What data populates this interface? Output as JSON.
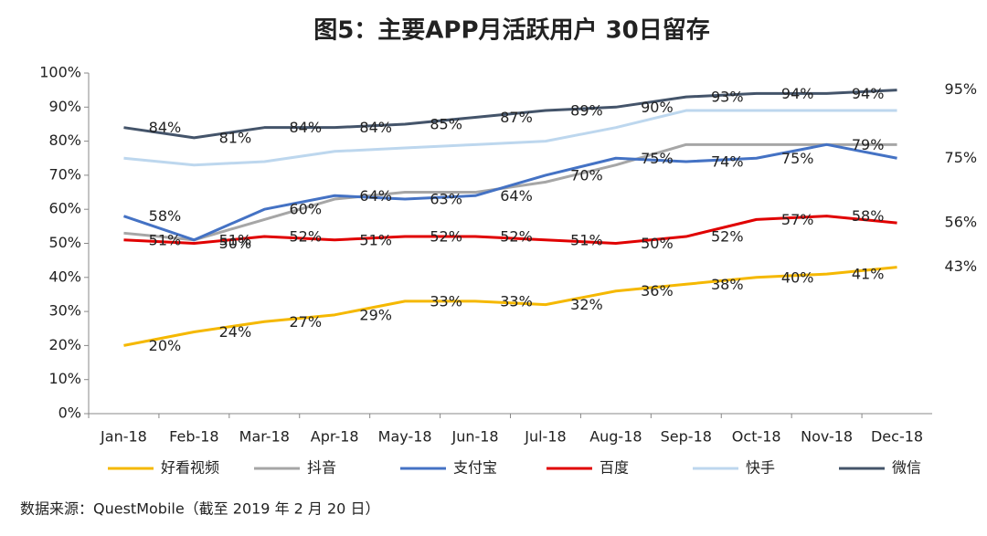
{
  "chart_data": {
    "type": "line",
    "title": "图5：主要APP月活跃用户 30日留存",
    "source": "数据来源：QuestMobile（截至 2019 年 2 月 20 日）",
    "categories": [
      "Jan-18",
      "Feb-18",
      "Mar-18",
      "Apr-18",
      "May-18",
      "Jun-18",
      "Jul-18",
      "Aug-18",
      "Sep-18",
      "Oct-18",
      "Nov-18",
      "Dec-18"
    ],
    "ylim": [
      0,
      100
    ],
    "yticks": [
      {
        "value": 0,
        "label": "0%"
      },
      {
        "value": 10,
        "label": "10%"
      },
      {
        "value": 20,
        "label": "20%"
      },
      {
        "value": 30,
        "label": "30%"
      },
      {
        "value": 40,
        "label": "40%"
      },
      {
        "value": 50,
        "label": "50%"
      },
      {
        "value": 60,
        "label": "60%"
      },
      {
        "value": 70,
        "label": "70%"
      },
      {
        "value": 80,
        "label": "80%"
      },
      {
        "value": 90,
        "label": "90%"
      },
      {
        "value": 100,
        "label": "100%"
      }
    ],
    "grid": false,
    "legend": "bottom",
    "series": [
      {
        "name": "好看视频",
        "color": "#f5b800",
        "values": [
          20,
          24,
          27,
          29,
          33,
          33,
          32,
          36,
          38,
          40,
          41,
          43
        ],
        "value_labels": [
          "20%",
          "24%",
          "27%",
          "29%",
          "33%",
          "33%",
          "32%",
          "36%",
          "38%",
          "40%",
          "41%",
          "43%"
        ]
      },
      {
        "name": "抖音",
        "color": "#a6a6a6",
        "values": [
          53,
          51,
          57,
          63,
          65,
          65,
          68,
          73,
          79,
          79,
          79,
          79
        ]
      },
      {
        "name": "支付宝",
        "color": "#4472c4",
        "values": [
          58,
          51,
          60,
          64,
          63,
          64,
          70,
          75,
          74,
          75,
          79,
          75
        ],
        "value_labels": [
          "58%",
          "51%",
          "60%",
          "64%",
          "63%",
          "64%",
          "70%",
          "75%",
          "74%",
          "75%",
          "79%",
          "75%"
        ]
      },
      {
        "name": "百度",
        "color": "#e00000",
        "values": [
          51,
          50,
          52,
          51,
          52,
          52,
          51,
          50,
          52,
          57,
          58,
          56
        ],
        "value_labels": [
          "51%",
          "50%",
          "52%",
          "51%",
          "52%",
          "52%",
          "51%",
          "50%",
          "52%",
          "57%",
          "58%",
          "56%"
        ]
      },
      {
        "name": "快手",
        "color": "#bdd7ee",
        "values": [
          75,
          73,
          74,
          77,
          78,
          79,
          80,
          84,
          89,
          89,
          89,
          89
        ]
      },
      {
        "name": "微信",
        "color": "#44546a",
        "values": [
          84,
          81,
          84,
          84,
          85,
          87,
          89,
          90,
          93,
          94,
          94,
          95
        ],
        "value_labels": [
          "84%",
          "81%",
          "84%",
          "84%",
          "85%",
          "87%",
          "89%",
          "90%",
          "93%",
          "94%",
          "94%",
          "95%"
        ]
      }
    ]
  }
}
